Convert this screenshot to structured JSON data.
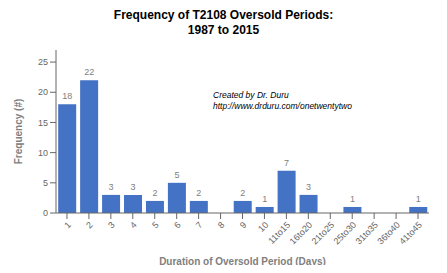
{
  "chart_data": {
    "type": "bar",
    "title": "Frequency of T2108 Oversold Periods:\n1987 to 2015",
    "xlabel": "Duration of Oversold Period (Days)",
    "ylabel": "Frequency (#)",
    "categories": [
      "1",
      "2",
      "3",
      "4",
      "5",
      "6",
      "7",
      "8",
      "9",
      "10",
      "11to15",
      "16to20",
      "21to25",
      "25to30",
      "31to35",
      "36to40",
      "41to45"
    ],
    "values": [
      18,
      22,
      3,
      3,
      2,
      5,
      2,
      0,
      2,
      1,
      7,
      3,
      0,
      1,
      0,
      0,
      1
    ],
    "color": "#4472C4",
    "ylim": [
      0,
      27
    ],
    "yticks": [
      0,
      5,
      10,
      15,
      20,
      25
    ],
    "grid": false,
    "data_labels": true,
    "annotation": "Created by Dr. Duru\nhttp://www.drduru.com/onetwentytwo"
  }
}
